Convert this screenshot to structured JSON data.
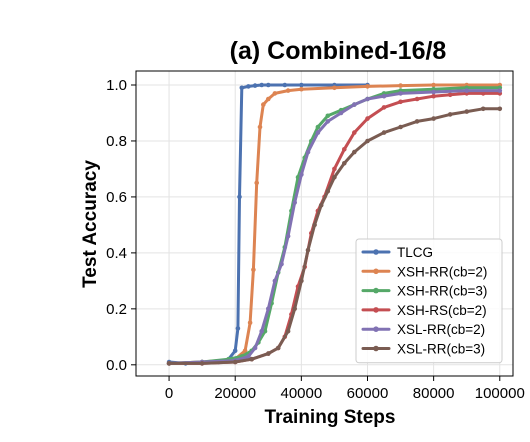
{
  "chart_data": {
    "type": "line",
    "title": "(a) Combined-16/8",
    "xlabel": "Training Steps",
    "ylabel": "Test Accuracy",
    "xlim": [
      -10000,
      104000
    ],
    "ylim": [
      -0.04,
      1.05
    ],
    "xticks": [
      0,
      20000,
      40000,
      60000,
      80000,
      100000
    ],
    "xtick_labels": [
      "0",
      "20000",
      "40000",
      "60000",
      "80000",
      "100000"
    ],
    "yticks": [
      0.0,
      0.2,
      0.4,
      0.6,
      0.8,
      1.0
    ],
    "ytick_labels": [
      "0.0",
      "0.2",
      "0.4",
      "0.6",
      "0.8",
      "1.0"
    ],
    "grid": true,
    "legend_position": "lower-right",
    "series": [
      {
        "name": "TLCG",
        "color": "#4c72b0",
        "x": [
          0,
          5000,
          10000,
          15000,
          18000,
          20000,
          20800,
          21300,
          22000,
          24000,
          26000,
          28000,
          30000,
          35000,
          40000,
          50000,
          60000
        ],
        "y": [
          0.01,
          0.005,
          0.01,
          0.01,
          0.02,
          0.05,
          0.13,
          0.6,
          0.99,
          0.995,
          0.998,
          1.0,
          1.0,
          1.0,
          1.0,
          1.0,
          1.0
        ]
      },
      {
        "name": "XSH-RR(cb=2)",
        "color": "#dd8452",
        "x": [
          0,
          10000,
          20000,
          23000,
          24500,
          25500,
          26500,
          27500,
          28500,
          30000,
          32000,
          36000,
          40000,
          50000,
          60000,
          70000,
          80000,
          90000,
          100000
        ],
        "y": [
          0.005,
          0.01,
          0.02,
          0.05,
          0.15,
          0.34,
          0.65,
          0.85,
          0.93,
          0.95,
          0.97,
          0.98,
          0.985,
          0.99,
          0.995,
          0.998,
          1.0,
          1.0,
          1.0
        ]
      },
      {
        "name": "XSH-RR(cb=3)",
        "color": "#55a868",
        "x": [
          0,
          10000,
          18000,
          22000,
          25000,
          27000,
          29000,
          31000,
          33000,
          35000,
          37000,
          39000,
          41000,
          43000,
          45000,
          48000,
          52000,
          56000,
          60000,
          65000,
          70000,
          80000,
          90000,
          100000
        ],
        "y": [
          0.005,
          0.01,
          0.02,
          0.03,
          0.05,
          0.08,
          0.12,
          0.22,
          0.33,
          0.42,
          0.55,
          0.67,
          0.74,
          0.8,
          0.85,
          0.89,
          0.91,
          0.93,
          0.95,
          0.97,
          0.98,
          0.985,
          0.99,
          0.99
        ]
      },
      {
        "name": "XSH-RS(cb=2)",
        "color": "#c44e52",
        "x": [
          0,
          10000,
          20000,
          25000,
          30000,
          33000,
          35000,
          37000,
          39000,
          41000,
          43000,
          45000,
          47000,
          50000,
          53000,
          56000,
          60000,
          65000,
          70000,
          75000,
          80000,
          85000,
          90000,
          95000,
          100000
        ],
        "y": [
          0.005,
          0.005,
          0.01,
          0.02,
          0.04,
          0.06,
          0.1,
          0.18,
          0.28,
          0.35,
          0.47,
          0.55,
          0.6,
          0.7,
          0.77,
          0.83,
          0.88,
          0.92,
          0.94,
          0.95,
          0.96,
          0.965,
          0.97,
          0.97,
          0.97
        ]
      },
      {
        "name": "XSL-RR(cb=2)",
        "color": "#8172b3",
        "x": [
          0,
          10000,
          20000,
          24000,
          26000,
          28000,
          30000,
          32000,
          34000,
          36000,
          38000,
          40000,
          42000,
          45000,
          48000,
          52000,
          56000,
          60000,
          65000,
          70000,
          80000,
          90000,
          100000
        ],
        "y": [
          0.005,
          0.01,
          0.015,
          0.03,
          0.06,
          0.12,
          0.2,
          0.3,
          0.36,
          0.46,
          0.58,
          0.68,
          0.76,
          0.83,
          0.87,
          0.9,
          0.93,
          0.95,
          0.96,
          0.97,
          0.975,
          0.98,
          0.98
        ]
      },
      {
        "name": "XSL-RR(cb=3)",
        "color": "#7a5c52",
        "x": [
          0,
          10000,
          20000,
          25000,
          30000,
          33000,
          36000,
          38000,
          40000,
          42000,
          44000,
          46000,
          48000,
          50000,
          53000,
          56000,
          60000,
          65000,
          70000,
          75000,
          80000,
          85000,
          90000,
          95000,
          100000
        ],
        "y": [
          0.005,
          0.005,
          0.01,
          0.02,
          0.04,
          0.06,
          0.12,
          0.2,
          0.3,
          0.41,
          0.5,
          0.57,
          0.62,
          0.67,
          0.72,
          0.76,
          0.8,
          0.83,
          0.85,
          0.87,
          0.88,
          0.895,
          0.905,
          0.915,
          0.915
        ]
      }
    ]
  }
}
